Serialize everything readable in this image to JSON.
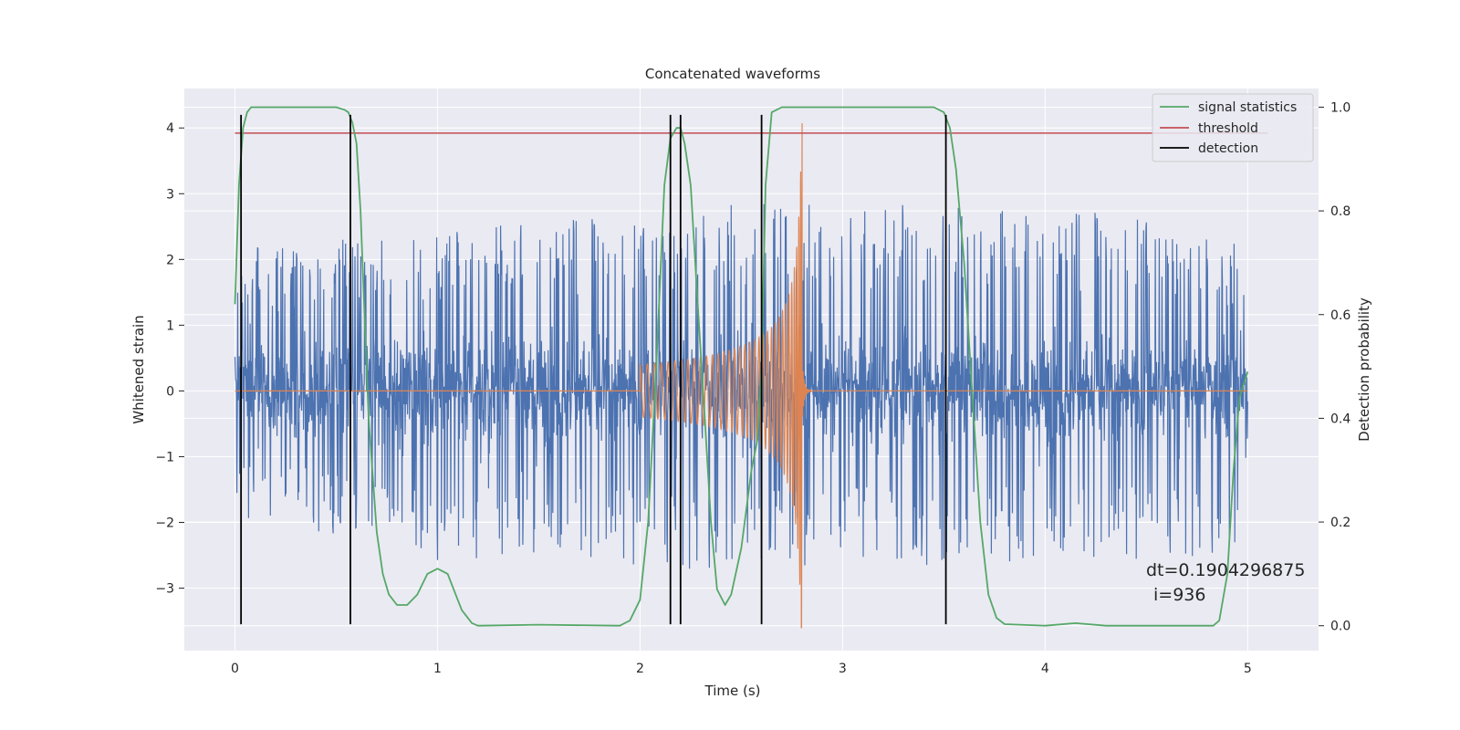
{
  "chart_data": {
    "type": "line",
    "title": "Concatenated waveforms",
    "xlabel": "Time (s)",
    "ylabel": "Whitened strain",
    "ylabel_right": "Detection probability",
    "xlim": [
      -0.25,
      5.35
    ],
    "ylim": [
      -3.95,
      4.6
    ],
    "ylim_right": [
      -0.048,
      1.036
    ],
    "xticks": [
      0,
      1,
      2,
      3,
      4,
      5
    ],
    "xtick_labels": [
      "0",
      "1",
      "2",
      "3",
      "4",
      "5"
    ],
    "yticks": [
      -3,
      -2,
      -1,
      0,
      1,
      2,
      3,
      4
    ],
    "ytick_labels": [
      "−3",
      "−2",
      "−1",
      "0",
      "1",
      "2",
      "3",
      "4"
    ],
    "yticks_right": [
      0.0,
      0.2,
      0.4,
      0.6,
      0.8,
      1.0
    ],
    "ytick_labels_right": [
      "0.0",
      "0.2",
      "0.4",
      "0.6",
      "0.8",
      "1.0"
    ],
    "grid": true,
    "legend_position": "top-right",
    "colors": {
      "background": "#eaeaf2",
      "grid": "#ffffff",
      "strain": "#4c72b0",
      "injection": "#dd8452",
      "signal_statistics": "#55a868",
      "threshold": "#c44e52",
      "detection": "#000000"
    },
    "strain": {
      "x_range": [
        0,
        5
      ],
      "envelope": [
        {
          "x": 0.0,
          "upper": 2.2,
          "lower": -1.9
        },
        {
          "x": 0.5,
          "upper": 2.3,
          "lower": -2.2
        },
        {
          "x": 1.0,
          "upper": 2.5,
          "lower": -2.6
        },
        {
          "x": 1.5,
          "upper": 2.6,
          "lower": -2.5
        },
        {
          "x": 2.0,
          "upper": 2.7,
          "lower": -2.7
        },
        {
          "x": 2.5,
          "upper": 2.9,
          "lower": -2.8
        },
        {
          "x": 3.0,
          "upper": 2.8,
          "lower": -2.6
        },
        {
          "x": 3.5,
          "upper": 2.9,
          "lower": -2.7
        },
        {
          "x": 4.0,
          "upper": 2.7,
          "lower": -2.6
        },
        {
          "x": 4.5,
          "upper": 2.8,
          "lower": -2.6
        },
        {
          "x": 5.0,
          "upper": 2.2,
          "lower": -2.5
        }
      ]
    },
    "injection": {
      "start": 2.0,
      "merger": 2.8,
      "end": 2.85,
      "amp_start": 0.4,
      "peak_upper": 4.1,
      "peak_lower": -3.6
    },
    "series": [
      {
        "name": "signal statistics",
        "axis": "right",
        "x": [
          0.0,
          0.02,
          0.04,
          0.06,
          0.08,
          0.1,
          0.2,
          0.3,
          0.4,
          0.5,
          0.54,
          0.56,
          0.58,
          0.6,
          0.62,
          0.64,
          0.66,
          0.7,
          0.73,
          0.76,
          0.8,
          0.85,
          0.9,
          0.95,
          1.0,
          1.05,
          1.08,
          1.12,
          1.17,
          1.2,
          1.5,
          1.9,
          1.95,
          2.0,
          2.04,
          2.08,
          2.12,
          2.15,
          2.18,
          2.2,
          2.22,
          2.25,
          2.28,
          2.32,
          2.35,
          2.38,
          2.42,
          2.45,
          2.5,
          2.55,
          2.58,
          2.6,
          2.62,
          2.65,
          2.7,
          3.0,
          3.3,
          3.45,
          3.5,
          3.53,
          3.56,
          3.6,
          3.64,
          3.68,
          3.72,
          3.76,
          3.8,
          4.0,
          4.15,
          4.3,
          4.83,
          4.86,
          4.9,
          4.93,
          4.96,
          5.0
        ],
        "y": [
          0.62,
          0.85,
          0.96,
          0.99,
          1.0,
          1.0,
          1.0,
          1.0,
          1.0,
          1.0,
          0.995,
          0.99,
          0.97,
          0.93,
          0.8,
          0.6,
          0.4,
          0.18,
          0.1,
          0.06,
          0.04,
          0.04,
          0.06,
          0.1,
          0.11,
          0.1,
          0.07,
          0.03,
          0.005,
          0.0,
          0.002,
          0.0,
          0.01,
          0.05,
          0.2,
          0.5,
          0.85,
          0.94,
          0.96,
          0.96,
          0.93,
          0.85,
          0.65,
          0.4,
          0.2,
          0.07,
          0.04,
          0.06,
          0.15,
          0.3,
          0.36,
          0.5,
          0.85,
          0.99,
          1.0,
          1.0,
          1.0,
          1.0,
          0.99,
          0.96,
          0.88,
          0.7,
          0.45,
          0.2,
          0.06,
          0.015,
          0.003,
          0.0,
          0.005,
          0.0,
          0.0,
          0.01,
          0.1,
          0.3,
          0.44,
          0.49
        ]
      },
      {
        "name": "threshold",
        "axis": "right",
        "x": [
          0.0,
          5.1
        ],
        "y": [
          0.95,
          0.95
        ]
      },
      {
        "name": "detection",
        "axis": "left",
        "x": [
          0.03,
          0.57,
          2.15,
          2.2,
          2.6,
          3.51
        ],
        "y_range": [
          -3.55,
          4.2
        ]
      }
    ],
    "annotation": {
      "line1": "dt=0.1904296875",
      "line2": "i=936",
      "x": 4.5,
      "y": -2.7
    }
  }
}
